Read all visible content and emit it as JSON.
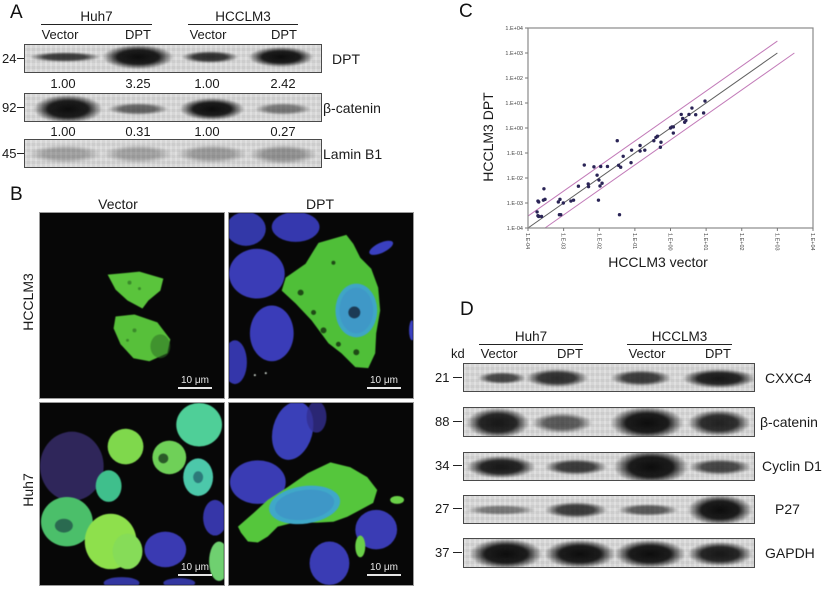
{
  "figure": {
    "panel_a": {
      "label": "A",
      "groups": [
        "Huh7",
        "HCCLM3"
      ],
      "lanes": [
        "Vector",
        "DPT",
        "Vector",
        "DPT"
      ],
      "blots": [
        {
          "marker": "24",
          "protein": "DPT",
          "quant": [
            "1.00",
            "3.25",
            "1.00",
            "2.42"
          ],
          "band_y": 12,
          "bands": [
            {
              "x": 40,
              "w": 62,
              "h": 5,
              "i": 0.8
            },
            {
              "x": 113,
              "w": 62,
              "h": 13,
              "i": 1
            },
            {
              "x": 185,
              "w": 50,
              "h": 6,
              "i": 0.85
            },
            {
              "x": 256,
              "w": 58,
              "h": 11,
              "i": 1
            }
          ]
        },
        {
          "marker": "92",
          "protein": "β-catenin",
          "quant": [
            "1.00",
            "0.31",
            "1.00",
            "0.27"
          ],
          "band_y": 15,
          "bands": [
            {
              "x": 43,
              "w": 60,
              "h": 15,
              "i": 1
            },
            {
              "x": 113,
              "w": 54,
              "h": 6,
              "i": 0.6
            },
            {
              "x": 187,
              "w": 58,
              "h": 12,
              "i": 1
            },
            {
              "x": 258,
              "w": 50,
              "h": 6,
              "i": 0.5
            }
          ]
        },
        {
          "marker": "45",
          "protein": "Lamin B1",
          "band_y": 14,
          "bands": [
            {
              "x": 40,
              "w": 64,
              "h": 9,
              "i": 0.28
            },
            {
              "x": 113,
              "w": 60,
              "h": 9,
              "i": 0.28
            },
            {
              "x": 187,
              "w": 62,
              "h": 9,
              "i": 0.32
            },
            {
              "x": 258,
              "w": 60,
              "h": 10,
              "i": 0.36
            }
          ]
        }
      ]
    },
    "panel_b": {
      "label": "B",
      "columns": [
        "Vector",
        "DPT"
      ],
      "rows": [
        "HCCLM3",
        "Huh7"
      ],
      "scale_bar": "10 μm",
      "colors": {
        "dpt_stain": "#58c23c",
        "nucleus_stain": "#3a40b8",
        "merged": "#3fa8c8"
      }
    },
    "panel_c": {
      "label": "C"
    },
    "panel_d": {
      "label": "D",
      "unit": "kd",
      "groups": [
        "Huh7",
        "HCCLM3"
      ],
      "lanes": [
        "Vector",
        "DPT",
        "Vector",
        "DPT"
      ],
      "blots": [
        {
          "marker": "21",
          "protein": "CXXC4",
          "band_y": 14,
          "bands": [
            {
              "x": 38,
              "w": 42,
              "h": 6,
              "i": 0.75
            },
            {
              "x": 93,
              "w": 56,
              "h": 9,
              "i": 0.85
            },
            {
              "x": 177,
              "w": 54,
              "h": 8,
              "i": 0.8
            },
            {
              "x": 255,
              "w": 64,
              "h": 10,
              "i": 0.95
            }
          ]
        },
        {
          "marker": "88",
          "protein": "β-catenin",
          "band_y": 15,
          "bands": [
            {
              "x": 34,
              "w": 56,
              "h": 16,
              "i": 0.95
            },
            {
              "x": 98,
              "w": 54,
              "h": 11,
              "i": 0.65
            },
            {
              "x": 183,
              "w": 64,
              "h": 17,
              "i": 1
            },
            {
              "x": 255,
              "w": 56,
              "h": 14,
              "i": 0.9
            }
          ]
        },
        {
          "marker": "34",
          "protein": "Cyclin D1",
          "band_y": 14,
          "bands": [
            {
              "x": 37,
              "w": 60,
              "h": 12,
              "i": 0.95
            },
            {
              "x": 112,
              "w": 56,
              "h": 8,
              "i": 0.8
            },
            {
              "x": 187,
              "w": 66,
              "h": 18,
              "i": 1
            },
            {
              "x": 256,
              "w": 56,
              "h": 8,
              "i": 0.75
            }
          ]
        },
        {
          "marker": "27",
          "protein": "P27",
          "band_y": 14,
          "bands": [
            {
              "x": 37,
              "w": 60,
              "h": 5,
              "i": 0.5
            },
            {
              "x": 112,
              "w": 56,
              "h": 8,
              "i": 0.8
            },
            {
              "x": 184,
              "w": 54,
              "h": 6,
              "i": 0.65
            },
            {
              "x": 256,
              "w": 58,
              "h": 16,
              "i": 1
            }
          ]
        },
        {
          "marker": "37",
          "protein": "GAPDH",
          "band_y": 15,
          "bands": [
            {
              "x": 42,
              "w": 64,
              "h": 16,
              "i": 1
            },
            {
              "x": 116,
              "w": 62,
              "h": 15,
              "i": 1
            },
            {
              "x": 186,
              "w": 62,
              "h": 15,
              "i": 1
            },
            {
              "x": 256,
              "w": 58,
              "h": 13,
              "i": 0.95
            }
          ]
        }
      ]
    }
  },
  "chart_data": {
    "type": "scatter",
    "title": "",
    "xlabel": "HCCLM3 vector",
    "ylabel": "HCCLM3 DPT",
    "xscale": "log",
    "yscale": "log",
    "xlim": [
      0.0001,
      10000.0
    ],
    "ylim": [
      0.0001,
      10000.0
    ],
    "x_ticks": [
      0.0001,
      0.001,
      0.01,
      0.1,
      1,
      10,
      100,
      1000,
      10000
    ],
    "x_tick_labels": [
      "1.E-04",
      "1.E-03",
      "1.E-02",
      "1.E-01",
      "1.E+00",
      "1.E+01",
      "1.E+02",
      "1.E+03",
      "1.E+04"
    ],
    "y_ticks": [
      0.0001,
      0.001,
      0.01,
      0.1,
      1,
      10,
      100,
      1000,
      10000
    ],
    "y_tick_labels": [
      "1.E-04",
      "1.E-03",
      "1.E-02",
      "1.E-01",
      "1.E+00",
      "1.E+01",
      "1.E+02",
      "1.E+03",
      "1.E+04"
    ],
    "grid": false,
    "legend": null,
    "point_color": "#2a2456",
    "series": [
      {
        "name": "",
        "x": [
          0.00019,
          0.0002,
          0.00028,
          0.00027,
          0.0003,
          0.00018,
          0.00019,
          0.0002,
          0.00024,
          0.00071,
          0.00079,
          0.00076,
          0.00083,
          0.00098,
          0.0016,
          0.0019,
          0.0026,
          0.0038,
          0.0049,
          0.005,
          0.0071,
          0.0087,
          0.0098,
          0.0105,
          0.011,
          0.012,
          0.0095,
          0.017,
          0.032,
          0.035,
          0.04,
          0.047,
          0.037,
          0.081,
          0.078,
          0.14,
          0.14,
          0.19,
          0.34,
          0.39,
          0.43,
          0.54,
          0.52,
          1.0,
          1.1,
          1.2,
          1.2,
          2.0,
          2.2,
          2.5,
          2.7,
          3.3,
          4.0,
          5.1,
          8.5,
          9.3
        ],
        "y": [
          0.0012,
          0.0011,
          0.0037,
          0.0013,
          0.0014,
          0.00044,
          0.00031,
          0.00029,
          0.00029,
          0.0011,
          0.0014,
          0.00034,
          0.00034,
          0.001,
          0.0012,
          0.0013,
          0.0047,
          0.033,
          0.0058,
          0.0045,
          0.028,
          0.013,
          0.0083,
          0.0048,
          0.029,
          0.0062,
          0.0013,
          0.029,
          0.31,
          0.032,
          0.027,
          0.074,
          0.00034,
          0.13,
          0.041,
          0.2,
          0.12,
          0.13,
          0.31,
          0.42,
          0.47,
          0.27,
          0.17,
          1.0,
          1.1,
          1.1,
          0.63,
          3.5,
          2.4,
          1.7,
          2.0,
          3.5,
          6.3,
          3.4,
          4.0,
          12
        ]
      }
    ],
    "reference_lines": [
      {
        "factor": 1,
        "x_range": [
          0.0001,
          1000.0
        ],
        "color": "#5e5e5e"
      },
      {
        "factor": 3,
        "x_range": [
          0.0001,
          1000.0
        ],
        "color": "#c27ab8"
      },
      {
        "factor": 0.3333,
        "x_range": [
          0.0003,
          3000.0
        ],
        "color": "#c27ab8"
      }
    ]
  }
}
